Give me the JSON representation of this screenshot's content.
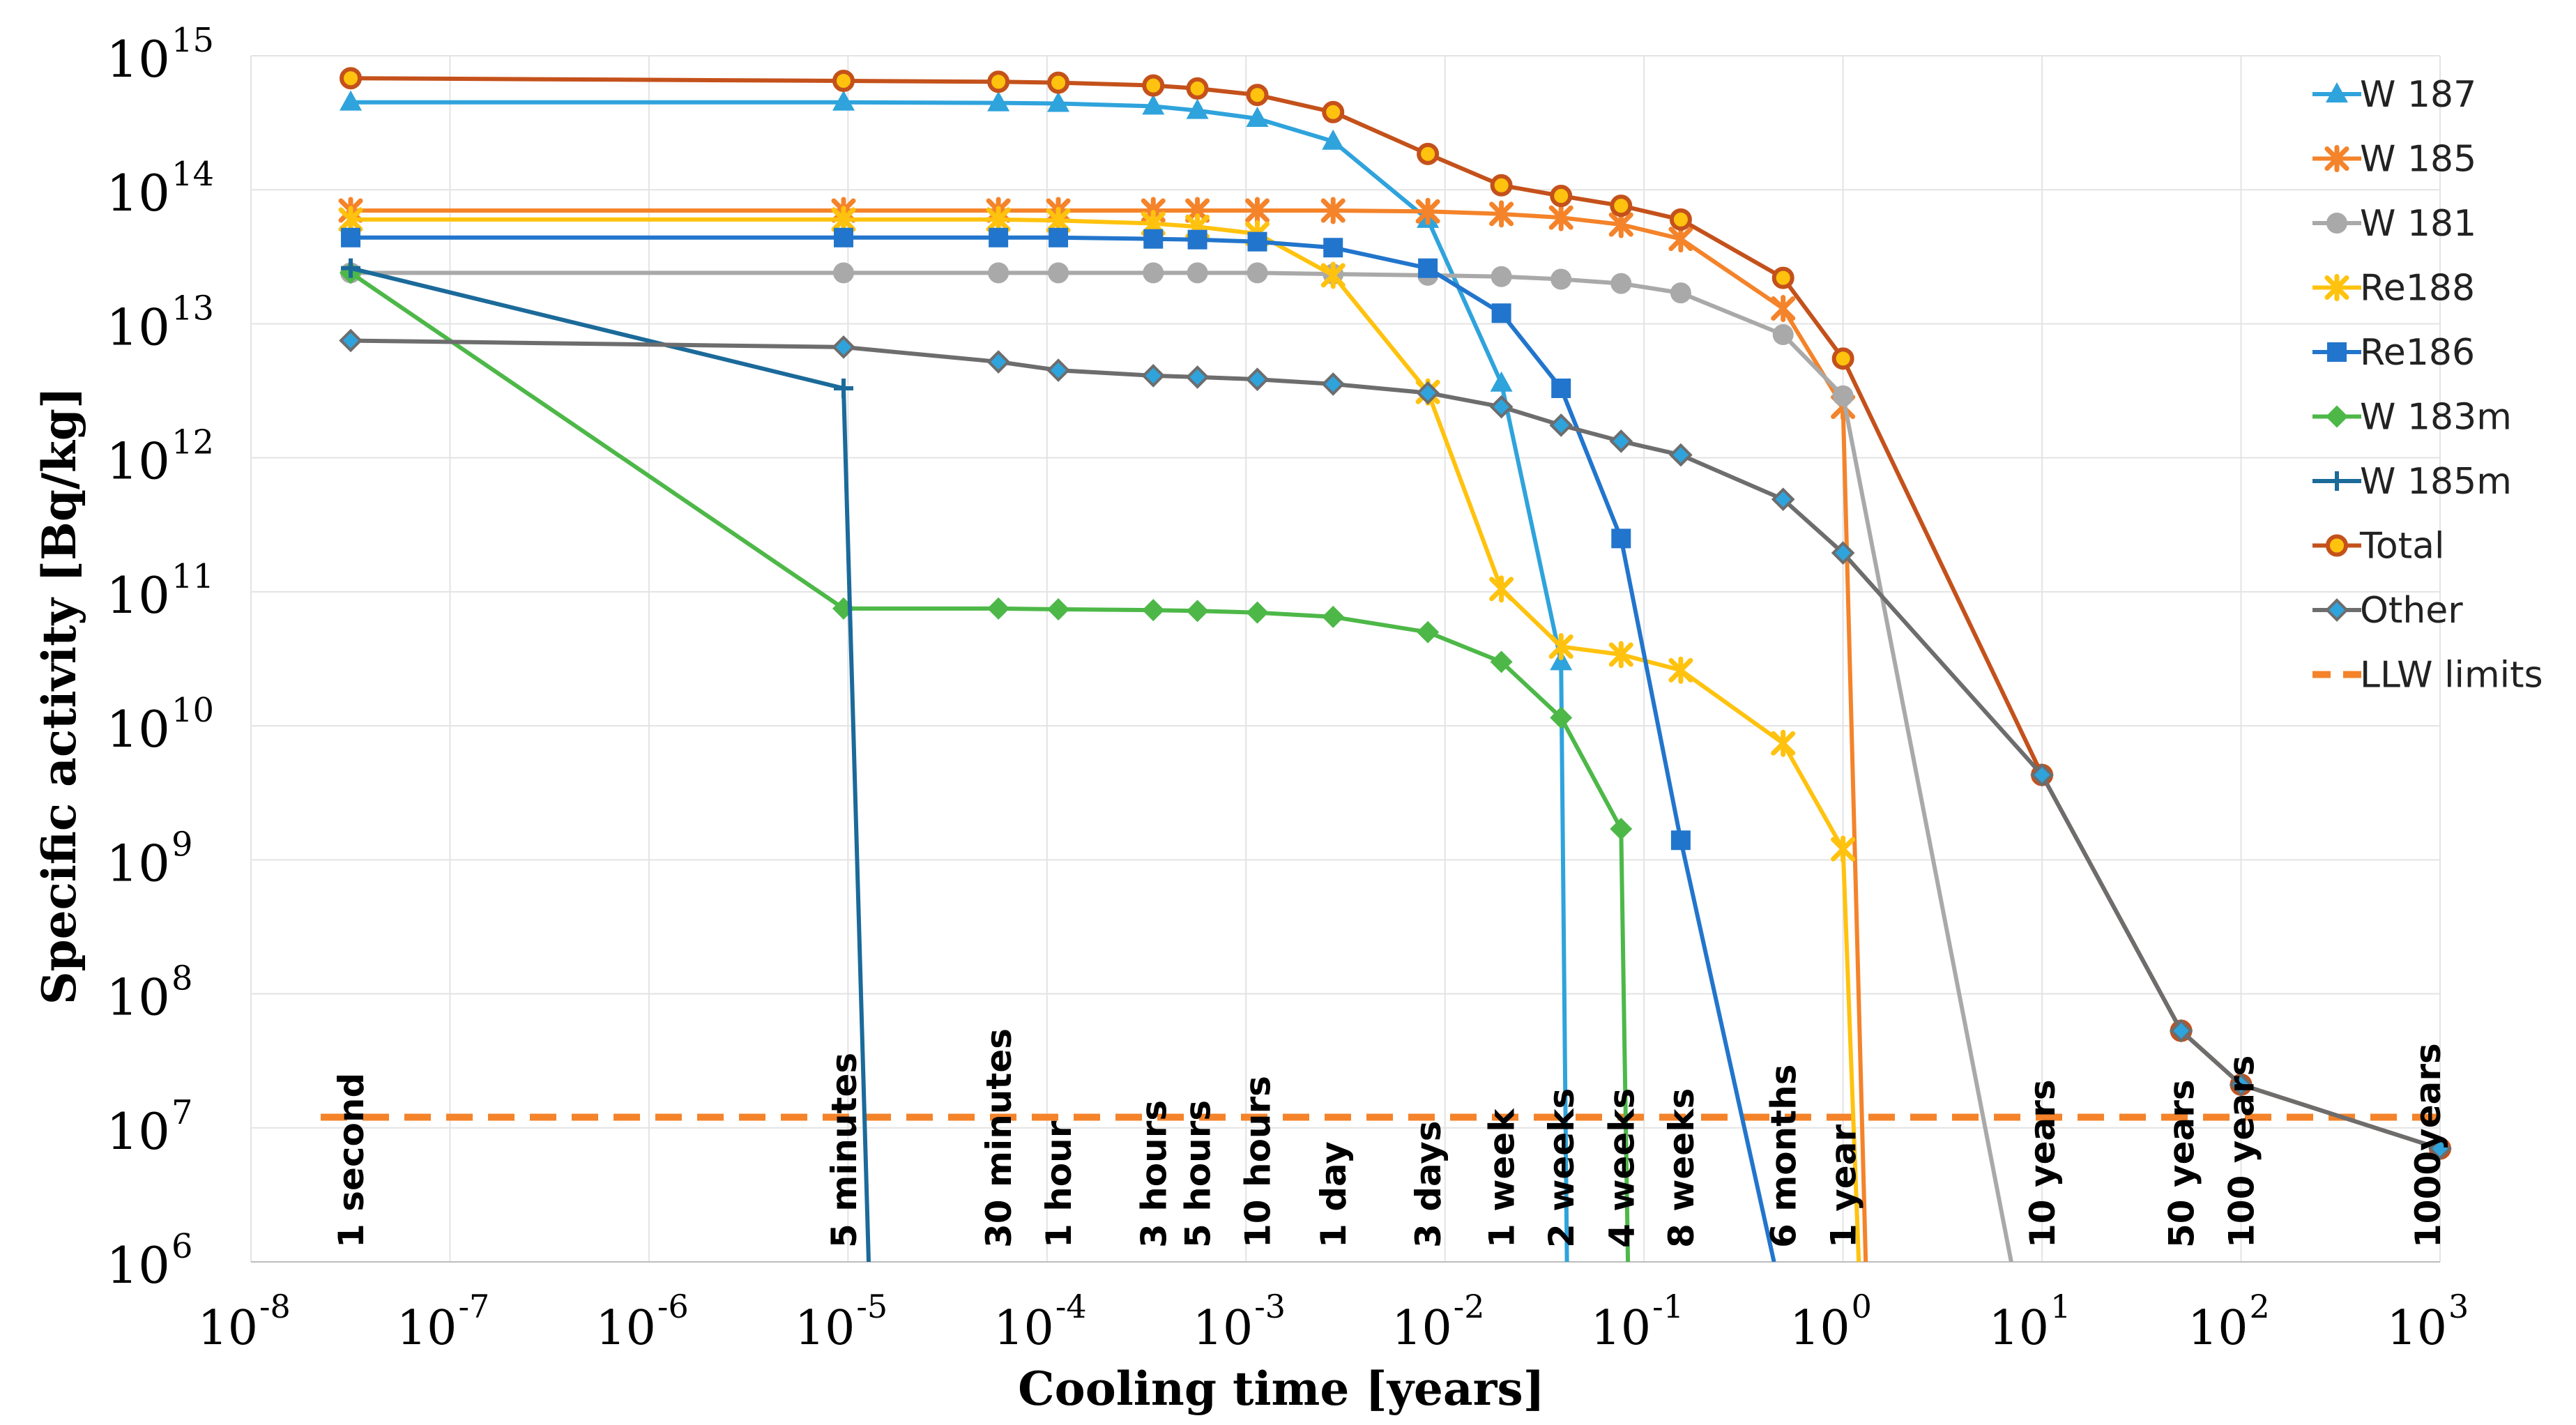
{
  "chart_data": {
    "type": "line",
    "xlabel": "Cooling time [years]",
    "ylabel": "Specific activity [Bq/kg]",
    "xscale": "log",
    "yscale": "log",
    "xlim": [
      1e-08,
      1000
    ],
    "ylim": [
      1000000.0,
      1000000000000000.0
    ],
    "x_ticks": [
      {
        "base": "10",
        "exp": "-8",
        "value": 1e-08
      },
      {
        "base": "10",
        "exp": "-7",
        "value": 1e-07
      },
      {
        "base": "10",
        "exp": "-6",
        "value": 1e-06
      },
      {
        "base": "10",
        "exp": "-5",
        "value": 1e-05
      },
      {
        "base": "10",
        "exp": "-4",
        "value": 0.0001
      },
      {
        "base": "10",
        "exp": "-3",
        "value": 0.001
      },
      {
        "base": "10",
        "exp": "-2",
        "value": 0.01
      },
      {
        "base": "10",
        "exp": "-1",
        "value": 0.1
      },
      {
        "base": "10",
        "exp": "0",
        "value": 1
      },
      {
        "base": "10",
        "exp": "1",
        "value": 10
      },
      {
        "base": "10",
        "exp": "2",
        "value": 100
      },
      {
        "base": "10",
        "exp": "3",
        "value": 1000
      }
    ],
    "y_ticks": [
      {
        "base": "10",
        "exp": "6",
        "value": 1000000.0
      },
      {
        "base": "10",
        "exp": "7",
        "value": 10000000.0
      },
      {
        "base": "10",
        "exp": "8",
        "value": 100000000.0
      },
      {
        "base": "10",
        "exp": "9",
        "value": 1000000000.0
      },
      {
        "base": "10",
        "exp": "10",
        "value": 10000000000.0
      },
      {
        "base": "10",
        "exp": "11",
        "value": 100000000000.0
      },
      {
        "base": "10",
        "exp": "12",
        "value": 1000000000000.0
      },
      {
        "base": "10",
        "exp": "13",
        "value": 10000000000000.0
      },
      {
        "base": "10",
        "exp": "14",
        "value": 100000000000000.0
      },
      {
        "base": "10",
        "exp": "15",
        "value": 1000000000000000.0
      }
    ],
    "annotations": [
      {
        "text": "1 second",
        "x": 3.17e-08
      },
      {
        "text": "5 minutes",
        "x": 9.5e-06
      },
      {
        "text": "30 minutes",
        "x": 5.7e-05
      },
      {
        "text": "1 hour",
        "x": 0.000114
      },
      {
        "text": "3 hours",
        "x": 0.000342
      },
      {
        "text": "5 hours",
        "x": 0.00057
      },
      {
        "text": "10 hours",
        "x": 0.00114
      },
      {
        "text": "1 day",
        "x": 0.00274
      },
      {
        "text": "3 days",
        "x": 0.0082
      },
      {
        "text": "1 week",
        "x": 0.0192
      },
      {
        "text": "2 weeks",
        "x": 0.0383
      },
      {
        "text": "4 weeks",
        "x": 0.0767
      },
      {
        "text": "8 weeks",
        "x": 0.153
      },
      {
        "text": "6 months",
        "x": 0.5
      },
      {
        "text": "1 year",
        "x": 1
      },
      {
        "text": "10 years",
        "x": 10
      },
      {
        "text": "50 years",
        "x": 50
      },
      {
        "text": "100 years",
        "x": 100
      },
      {
        "text": "1000years",
        "x": 1000
      }
    ],
    "reference_lines": [
      {
        "name": "LLW limits",
        "y": 12000000.0,
        "color": "#F4832A",
        "style": "dashed"
      }
    ],
    "legend": {
      "position": "top-right"
    },
    "series": [
      {
        "name": "W 187",
        "color": "#2FA3DC",
        "marker": "triangle",
        "points": [
          [
            3.17e-08,
            450000000000000.0
          ],
          [
            9.5e-06,
            450000000000000.0
          ],
          [
            5.7e-05,
            445000000000000.0
          ],
          [
            0.000114,
            440000000000000.0
          ],
          [
            0.000342,
            420000000000000.0
          ],
          [
            0.00057,
            390000000000000.0
          ],
          [
            0.00114,
            340000000000000.0
          ],
          [
            0.00274,
            230000000000000.0
          ],
          [
            0.0082,
            60000000000000.0
          ],
          [
            0.0192,
            3600000000000.0
          ],
          [
            0.0383,
            30000000000.0
          ],
          [
            0.041,
            1000000.0
          ]
        ]
      },
      {
        "name": "W 185",
        "color": "#F4832A",
        "marker": "x",
        "points": [
          [
            3.17e-08,
            70000000000000.0
          ],
          [
            9.5e-06,
            70000000000000.0
          ],
          [
            5.7e-05,
            70000000000000.0
          ],
          [
            0.000114,
            70000000000000.0
          ],
          [
            0.000342,
            70000000000000.0
          ],
          [
            0.00057,
            70000000000000.0
          ],
          [
            0.00114,
            70000000000000.0
          ],
          [
            0.00274,
            70000000000000.0
          ],
          [
            0.0082,
            69000000000000.0
          ],
          [
            0.0192,
            66000000000000.0
          ],
          [
            0.0383,
            62000000000000.0
          ],
          [
            0.0767,
            55000000000000.0
          ],
          [
            0.153,
            43000000000000.0
          ],
          [
            0.5,
            13000000000000.0
          ],
          [
            1,
            2400000000000.0
          ],
          [
            1.3,
            1000000.0
          ]
        ]
      },
      {
        "name": "W 181",
        "color": "#A9A9A9",
        "marker": "circle",
        "points": [
          [
            3.17e-08,
            24000000000000.0
          ],
          [
            9.5e-06,
            24000000000000.0
          ],
          [
            5.7e-05,
            24000000000000.0
          ],
          [
            0.000114,
            24000000000000.0
          ],
          [
            0.000342,
            24000000000000.0
          ],
          [
            0.00057,
            24000000000000.0
          ],
          [
            0.00114,
            24000000000000.0
          ],
          [
            0.00274,
            23500000000000.0
          ],
          [
            0.0082,
            23000000000000.0
          ],
          [
            0.0192,
            22500000000000.0
          ],
          [
            0.0383,
            21500000000000.0
          ],
          [
            0.0767,
            20000000000000.0
          ],
          [
            0.153,
            17000000000000.0
          ],
          [
            0.5,
            8300000000000.0
          ],
          [
            1,
            2900000000000.0
          ],
          [
            7,
            1000000.0
          ]
        ]
      },
      {
        "name": "Re188",
        "color": "#FFC20E",
        "marker": "x",
        "points": [
          [
            3.17e-08,
            60000000000000.0
          ],
          [
            9.5e-06,
            60000000000000.0
          ],
          [
            5.7e-05,
            60000000000000.0
          ],
          [
            0.000114,
            59000000000000.0
          ],
          [
            0.000342,
            56000000000000.0
          ],
          [
            0.00057,
            53000000000000.0
          ],
          [
            0.00114,
            47000000000000.0
          ],
          [
            0.00274,
            23000000000000.0
          ],
          [
            0.0082,
            3100000000000.0
          ],
          [
            0.0192,
            105000000000.0
          ],
          [
            0.0383,
            39000000000.0
          ],
          [
            0.0767,
            34000000000.0
          ],
          [
            0.153,
            26000000000.0
          ],
          [
            0.5,
            7400000000.0
          ],
          [
            1,
            1200000000.0
          ],
          [
            1.2,
            1000000.0
          ]
        ]
      },
      {
        "name": "Re186",
        "color": "#2275CC",
        "marker": "square",
        "points": [
          [
            3.17e-08,
            44000000000000.0
          ],
          [
            9.5e-06,
            44000000000000.0
          ],
          [
            5.7e-05,
            44000000000000.0
          ],
          [
            0.000114,
            44000000000000.0
          ],
          [
            0.000342,
            43000000000000.0
          ],
          [
            0.00057,
            42500000000000.0
          ],
          [
            0.00114,
            41000000000000.0
          ],
          [
            0.00274,
            37000000000000.0
          ],
          [
            0.0082,
            26000000000000.0
          ],
          [
            0.0192,
            12000000000000.0
          ],
          [
            0.0383,
            3300000000000.0
          ],
          [
            0.0767,
            250000000000.0
          ],
          [
            0.153,
            1400000000.0
          ],
          [
            0.45,
            1000000.0
          ]
        ]
      },
      {
        "name": "W 183m",
        "color": "#4DB848",
        "marker": "diamond",
        "points": [
          [
            3.17e-08,
            24000000000000.0
          ],
          [
            9.5e-06,
            75000000000.0
          ],
          [
            5.7e-05,
            75000000000.0
          ],
          [
            0.000114,
            74000000000.0
          ],
          [
            0.000342,
            73000000000.0
          ],
          [
            0.00057,
            72000000000.0
          ],
          [
            0.00114,
            70000000000.0
          ],
          [
            0.00274,
            65000000000.0
          ],
          [
            0.0082,
            50000000000.0
          ],
          [
            0.0192,
            30000000000.0
          ],
          [
            0.0383,
            11500000000.0
          ],
          [
            0.0767,
            1700000000.0
          ],
          [
            0.083,
            1000000.0
          ]
        ]
      },
      {
        "name": "W 185m",
        "color": "#1B6A9A",
        "marker": "plus",
        "points": [
          [
            3.17e-08,
            26000000000000.0
          ],
          [
            9.5e-06,
            3300000000000.0
          ],
          [
            1.27e-05,
            1000000.0
          ]
        ]
      },
      {
        "name": "Total",
        "color": "#C4511B",
        "marker": "circle-ring",
        "points": [
          [
            3.17e-08,
            680000000000000.0
          ],
          [
            9.5e-06,
            650000000000000.0
          ],
          [
            5.7e-05,
            640000000000000.0
          ],
          [
            0.000114,
            630000000000000.0
          ],
          [
            0.000342,
            600000000000000.0
          ],
          [
            0.00057,
            570000000000000.0
          ],
          [
            0.00114,
            510000000000000.0
          ],
          [
            0.00274,
            380000000000000.0
          ],
          [
            0.0082,
            185000000000000.0
          ],
          [
            0.0192,
            108000000000000.0
          ],
          [
            0.0383,
            90000000000000.0
          ],
          [
            0.0767,
            76000000000000.0
          ],
          [
            0.153,
            60000000000000.0
          ],
          [
            0.5,
            22000000000000.0
          ],
          [
            1,
            5500000000000.0
          ],
          [
            10,
            4300000000.0
          ],
          [
            50,
            53000000.0
          ],
          [
            100,
            21000000.0
          ],
          [
            1000,
            7000000.0
          ]
        ]
      },
      {
        "name": "Other",
        "color": "#6D6D6D",
        "marker": "diamond-blue",
        "points": [
          [
            3.17e-08,
            7500000000000.0
          ],
          [
            9.5e-06,
            6700000000000.0
          ],
          [
            5.7e-05,
            5200000000000.0
          ],
          [
            0.000114,
            4500000000000.0
          ],
          [
            0.000342,
            4100000000000.0
          ],
          [
            0.00057,
            4000000000000.0
          ],
          [
            0.00114,
            3850000000000.0
          ],
          [
            0.00274,
            3550000000000.0
          ],
          [
            0.0082,
            3050000000000.0
          ],
          [
            0.0192,
            2400000000000.0
          ],
          [
            0.0383,
            1750000000000.0
          ],
          [
            0.0767,
            1330000000000.0
          ],
          [
            0.153,
            1050000000000.0
          ],
          [
            0.5,
            490000000000.0
          ],
          [
            1,
            195000000000.0
          ],
          [
            10,
            4300000000.0
          ],
          [
            50,
            53000000.0
          ],
          [
            100,
            21000000.0
          ],
          [
            1000,
            7000000.0
          ]
        ]
      }
    ]
  }
}
